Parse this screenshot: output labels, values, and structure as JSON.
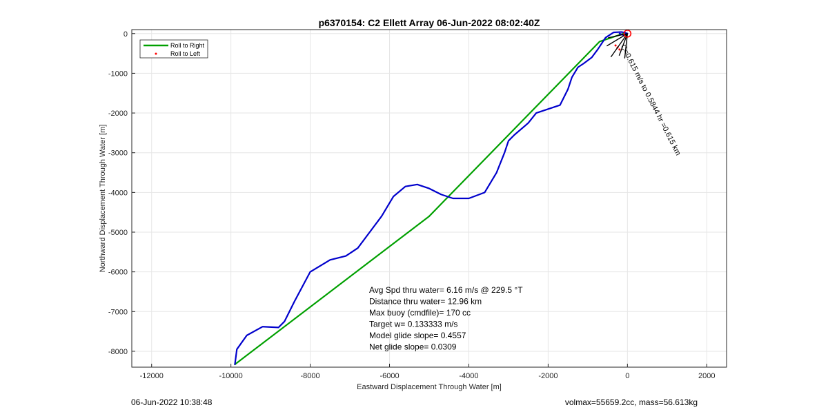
{
  "chart_data": {
    "type": "line",
    "title": "p6370154: C2 Ellett Array 06-Jun-2022 08:02:40Z",
    "xlabel": "Eastward Displacement Through Water [m]",
    "ylabel": "Northward Displacement Through Water [m]",
    "xlim": [
      -12500,
      2500
    ],
    "ylim": [
      -8400,
      100
    ],
    "xticks": [
      -12000,
      -10000,
      -8000,
      -6000,
      -4000,
      -2000,
      0,
      2000
    ],
    "yticks": [
      0,
      -1000,
      -2000,
      -3000,
      -4000,
      -5000,
      -6000,
      -7000,
      -8000
    ],
    "grid": true,
    "legend_position": "top-left",
    "legend": [
      "Roll to Right",
      "Roll to Left"
    ],
    "series": [
      {
        "name": "Roll to Right",
        "color": "#00a000",
        "x": [
          -9900,
          -5000,
          -700,
          -100
        ],
        "y": [
          -8330,
          -4600,
          -200,
          0
        ]
      },
      {
        "name": "",
        "color": "#0000cc",
        "x": [
          -9900,
          -9850,
          -9600,
          -9200,
          -8800,
          -8650,
          -8400,
          -8000,
          -7500,
          -7100,
          -6800,
          -6500,
          -6200,
          -5900,
          -5600,
          -5300,
          -5000,
          -4700,
          -4400,
          -4000,
          -3600,
          -3300,
          -3100,
          -3000,
          -2850,
          -2500,
          -2300,
          -2000,
          -1700,
          -1500,
          -1400,
          -1250,
          -1100,
          -900,
          -750,
          -550,
          -350,
          -150,
          -50,
          0,
          -100,
          -200
        ],
        "y": [
          -8330,
          -7950,
          -7600,
          -7380,
          -7400,
          -7250,
          -6750,
          -6000,
          -5700,
          -5600,
          -5400,
          -5000,
          -4600,
          -4100,
          -3850,
          -3800,
          -3900,
          -4050,
          -4150,
          -4150,
          -4000,
          -3500,
          -3000,
          -2700,
          -2550,
          -2250,
          -2000,
          -1900,
          -1800,
          -1400,
          -1100,
          -850,
          -750,
          -600,
          -400,
          -100,
          30,
          40,
          20,
          0,
          -40,
          0
        ]
      },
      {
        "name": "Roll to Left",
        "color": "#ff0000",
        "x": [
          -300,
          -200,
          -250
        ],
        "y": [
          -300,
          -400,
          -350
        ]
      }
    ],
    "annotations": {
      "current_label": "C=0.615 m/s to 0.5844 hr =0.615 km",
      "arrow_color": "#000000",
      "marker_color": "#ff0000",
      "marker_x": 0,
      "marker_y": 0
    },
    "stats": [
      "Avg Spd thru water=  6.16 m/s @ 229.5 °T",
      "Distance thru water= 12.96 km",
      "Max buoy (cmdfile)= 170 cc",
      "Target w= 0.133333 m/s",
      "Model glide slope= 0.4557",
      "Net glide slope= 0.0309"
    ]
  },
  "footer": {
    "left": "06-Jun-2022 10:38:48",
    "right": "volmax=55659.2cc, mass=56.613kg"
  }
}
